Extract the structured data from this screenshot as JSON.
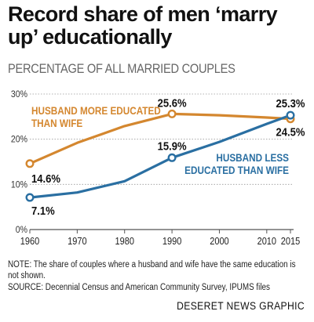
{
  "header": {
    "title": "Record share of men ‘marry up’ educationally",
    "subtitle": "PERCENTAGE OF ALL MARRIED COUPLES"
  },
  "footer": {
    "note": "NOTE: The share of couples where a husband and wife have the same education is not shown.",
    "source": "SOURCE: Decennial Census and American Community Survey, IPUMS files",
    "credit": "DESERET NEWS GRAPHIC"
  },
  "colors": {
    "husband_more": "#d4872f",
    "husband_less": "#2a6fa2",
    "axis": "#555555"
  },
  "chart_data": {
    "type": "line",
    "title": "Record share of men ‘marry up’ educationally",
    "ylabel": "PERCENTAGE OF ALL MARRIED COUPLES",
    "xlabel": "",
    "x_ticks": [
      "1960",
      "1970",
      "1980",
      "1990",
      "2000",
      "2010",
      "2015"
    ],
    "x_tick_values": [
      1960,
      1970,
      1980,
      1990,
      2000,
      2010,
      2015
    ],
    "y_ticks": [
      "0%",
      "10%",
      "20%",
      "30%"
    ],
    "y_tick_values": [
      0,
      10,
      20,
      30
    ],
    "xlim": [
      1960,
      2015
    ],
    "ylim": [
      0,
      30
    ],
    "grid": "horizontal",
    "series": [
      {
        "name": "HUSBAND MORE EDUCATED THAN WIFE",
        "color": "#d4872f",
        "label_lines": [
          "HUSBAND MORE EDUCATED",
          "THAN WIFE"
        ],
        "x": [
          1960,
          1970,
          1980,
          1990,
          2000,
          2010,
          2015
        ],
        "y": [
          14.6,
          19.2,
          22.9,
          25.6,
          25.3,
          24.8,
          24.5
        ],
        "markers": [
          {
            "x": 1960,
            "y": 14.6,
            "label": "14.6%"
          },
          {
            "x": 1990,
            "y": 25.6,
            "label": "25.6%"
          },
          {
            "x": 2015,
            "y": 24.5,
            "label": "24.5%"
          }
        ]
      },
      {
        "name": "HUSBAND LESS EDUCATED THAN WIFE",
        "color": "#2a6fa2",
        "label_lines": [
          "HUSBAND LESS",
          "EDUCATED THAN WIFE"
        ],
        "x": [
          1960,
          1970,
          1980,
          1990,
          2000,
          2010,
          2015
        ],
        "y": [
          7.1,
          8.2,
          10.7,
          15.9,
          19.4,
          23.4,
          25.3
        ],
        "markers": [
          {
            "x": 1960,
            "y": 7.1,
            "label": "7.1%"
          },
          {
            "x": 1990,
            "y": 15.9,
            "label": "15.9%"
          },
          {
            "x": 2015,
            "y": 25.3,
            "label": "25.3%"
          }
        ]
      }
    ]
  }
}
